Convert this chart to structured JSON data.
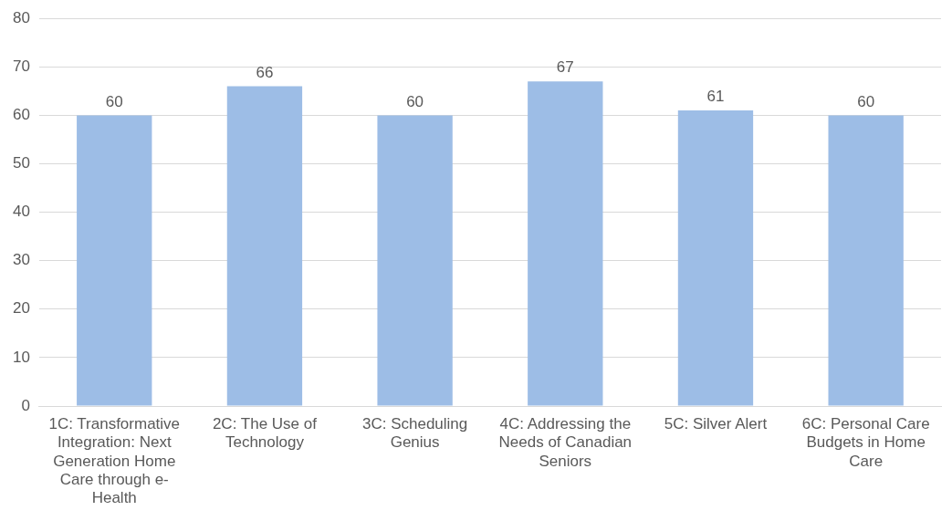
{
  "chart_data": {
    "type": "bar",
    "categories": [
      "1C: Transformative Integration: Next Generation Home Care through e-Health",
      "2C: The Use of Technology",
      "3C: Scheduling Genius",
      "4C: Addressing the Needs of Canadian Seniors",
      "5C: Silver Alert",
      "6C: Personal Care Budgets in Home Care"
    ],
    "values": [
      60,
      66,
      60,
      67,
      61,
      60
    ],
    "color": "#9dbde6",
    "ylim": [
      0,
      80
    ],
    "yticks": [
      0,
      10,
      20,
      30,
      40,
      50,
      60,
      70,
      80
    ],
    "grid": "y",
    "data_labels": true,
    "legend": false
  }
}
